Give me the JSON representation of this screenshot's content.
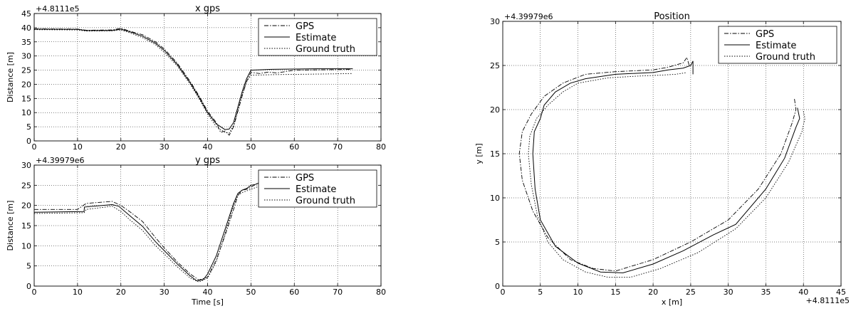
{
  "chart_data": [
    {
      "type": "line",
      "title": "x gps",
      "offset_label": "+4.8111e5",
      "xlabel": "",
      "ylabel": "Distance [m]",
      "xlim": [
        0,
        80
      ],
      "ylim": [
        0,
        45
      ],
      "xticks": [
        "0",
        "10",
        "20",
        "30",
        "40",
        "50",
        "60",
        "70",
        "80"
      ],
      "yticks": [
        "0",
        "5",
        "10",
        "15",
        "20",
        "25",
        "30",
        "35",
        "40",
        "45"
      ],
      "grid": true,
      "legend_position": "top-right",
      "legend": [
        "GPS",
        "Estimate",
        "Ground truth"
      ],
      "series": [
        {
          "name": "GPS",
          "style": "dashdot",
          "points": [
            [
              0,
              39.6
            ],
            [
              10,
              39.5
            ],
            [
              12,
              39.1
            ],
            [
              18,
              39.2
            ],
            [
              20,
              39.8
            ],
            [
              22,
              38.8
            ],
            [
              25,
              37.5
            ],
            [
              28,
              35.0
            ],
            [
              30,
              32.5
            ],
            [
              33,
              27.5
            ],
            [
              36,
              21.0
            ],
            [
              38,
              16.0
            ],
            [
              40,
              10.5
            ],
            [
              42,
              6.5
            ],
            [
              43,
              3.0
            ],
            [
              44,
              3.5
            ],
            [
              45,
              2.0
            ],
            [
              46,
              5.0
            ],
            [
              47,
              10.5
            ],
            [
              48,
              16.0
            ],
            [
              49,
              21.0
            ],
            [
              50,
              24.2
            ],
            [
              52,
              23.8
            ],
            [
              54,
              24.3
            ],
            [
              56,
              24.0
            ],
            [
              60,
              25.0
            ],
            [
              65,
              25.1
            ],
            [
              70,
              25.2
            ],
            [
              73,
              25.3
            ]
          ]
        },
        {
          "name": "Estimate",
          "style": "solid",
          "points": [
            [
              0,
              39.5
            ],
            [
              10,
              39.4
            ],
            [
              12,
              39.0
            ],
            [
              18,
              39.0
            ],
            [
              20,
              39.5
            ],
            [
              22,
              38.6
            ],
            [
              25,
              37.0
            ],
            [
              28,
              34.5
            ],
            [
              30,
              32.0
            ],
            [
              33,
              27.0
            ],
            [
              36,
              20.5
            ],
            [
              38,
              15.5
            ],
            [
              40,
              10.0
            ],
            [
              42,
              6.0
            ],
            [
              44,
              4.0
            ],
            [
              45,
              4.2
            ],
            [
              46,
              6.5
            ],
            [
              47,
              12.0
            ],
            [
              48,
              17.5
            ],
            [
              49,
              22.0
            ],
            [
              50,
              25.0
            ],
            [
              55,
              25.3
            ],
            [
              60,
              25.4
            ],
            [
              65,
              25.5
            ],
            [
              70,
              25.5
            ],
            [
              73.5,
              25.5
            ]
          ]
        },
        {
          "name": "Ground truth",
          "style": "dotted",
          "points": [
            [
              0,
              39.3
            ],
            [
              10,
              39.2
            ],
            [
              12,
              38.8
            ],
            [
              18,
              38.9
            ],
            [
              20,
              39.2
            ],
            [
              22,
              38.2
            ],
            [
              25,
              36.5
            ],
            [
              28,
              34.0
            ],
            [
              30,
              31.3
            ],
            [
              33,
              26.5
            ],
            [
              36,
              20.0
            ],
            [
              38,
              15.0
            ],
            [
              40,
              9.5
            ],
            [
              42,
              5.0
            ],
            [
              44,
              3.0
            ],
            [
              45,
              2.8
            ],
            [
              46,
              5.5
            ],
            [
              47,
              11.0
            ],
            [
              48,
              16.5
            ],
            [
              49,
              21.0
            ],
            [
              50,
              23.2
            ],
            [
              55,
              23.4
            ],
            [
              60,
              23.5
            ],
            [
              65,
              23.6
            ],
            [
              70,
              23.7
            ],
            [
              73.5,
              23.8
            ]
          ]
        }
      ]
    },
    {
      "type": "line",
      "title": "y gps",
      "offset_label": "+4.39979e6",
      "xlabel": "Time [s]",
      "ylabel": "Distance [m]",
      "xlim": [
        0,
        80
      ],
      "ylim": [
        0,
        30
      ],
      "xticks": [
        "0",
        "10",
        "20",
        "30",
        "40",
        "50",
        "60",
        "70",
        "80"
      ],
      "yticks": [
        "0",
        "5",
        "10",
        "15",
        "20",
        "25",
        "30"
      ],
      "grid": true,
      "legend_position": "top-right",
      "legend": [
        "GPS",
        "Estimate",
        "Ground truth"
      ],
      "series": [
        {
          "name": "GPS",
          "style": "dashdot",
          "points": [
            [
              0,
              19.0
            ],
            [
              10,
              19.0
            ],
            [
              12,
              20.5
            ],
            [
              18,
              21.0
            ],
            [
              20,
              20.0
            ],
            [
              22,
              18.5
            ],
            [
              25,
              16.0
            ],
            [
              28,
              12.0
            ],
            [
              30,
              9.5
            ],
            [
              33,
              6.0
            ],
            [
              36,
              3.0
            ],
            [
              38,
              1.5
            ],
            [
              40,
              2.2
            ],
            [
              42,
              6.5
            ],
            [
              44,
              12.5
            ],
            [
              46,
              19.0
            ],
            [
              47,
              22.5
            ],
            [
              48,
              23.8
            ],
            [
              49,
              24.0
            ],
            [
              50,
              24.5
            ],
            [
              51,
              25.2
            ],
            [
              52,
              25.8
            ]
          ]
        },
        {
          "name": "Estimate",
          "style": "solid",
          "points": [
            [
              0,
              18.3
            ],
            [
              11.5,
              18.5
            ],
            [
              11.6,
              19.6
            ],
            [
              18,
              20.2
            ],
            [
              19.5,
              19.8
            ],
            [
              22,
              17.5
            ],
            [
              25,
              14.8
            ],
            [
              28,
              11.0
            ],
            [
              30,
              8.8
            ],
            [
              33,
              5.5
            ],
            [
              36,
              2.5
            ],
            [
              37.5,
              1.3
            ],
            [
              39,
              1.6
            ],
            [
              40,
              3.0
            ],
            [
              42,
              7.5
            ],
            [
              44,
              14.0
            ],
            [
              46,
              20.5
            ],
            [
              47,
              23.0
            ],
            [
              48,
              23.8
            ],
            [
              49,
              24.2
            ],
            [
              50,
              25.0
            ],
            [
              51,
              25.2
            ],
            [
              52,
              25.6
            ]
          ]
        },
        {
          "name": "Ground truth",
          "style": "dotted",
          "points": [
            [
              0,
              18.0
            ],
            [
              11.5,
              18.2
            ],
            [
              12,
              19.0
            ],
            [
              18,
              19.8
            ],
            [
              20,
              18.5
            ],
            [
              22,
              16.5
            ],
            [
              25,
              13.8
            ],
            [
              28,
              10.0
            ],
            [
              30,
              8.0
            ],
            [
              33,
              4.8
            ],
            [
              36,
              2.0
            ],
            [
              38,
              1.0
            ],
            [
              40,
              2.0
            ],
            [
              42,
              6.0
            ],
            [
              44,
              13.0
            ],
            [
              46,
              20.0
            ],
            [
              47,
              22.5
            ],
            [
              48,
              23.2
            ],
            [
              50,
              24.0
            ],
            [
              52,
              24.8
            ]
          ]
        }
      ]
    },
    {
      "type": "line",
      "title": "Position",
      "offset_label": "+4.39979e6",
      "x_offset_label": "+4.8111e5",
      "xlabel": "x [m]",
      "ylabel": "y [m]",
      "xlim": [
        0,
        45
      ],
      "ylim": [
        0,
        30
      ],
      "xticks": [
        "0",
        "5",
        "10",
        "15",
        "20",
        "25",
        "30",
        "35",
        "40",
        "45"
      ],
      "yticks": [
        "0",
        "5",
        "10",
        "15",
        "20",
        "25",
        "30"
      ],
      "grid": true,
      "legend_position": "top-right",
      "legend": [
        "GPS",
        "Estimate",
        "Ground truth"
      ],
      "series": [
        {
          "name": "GPS",
          "style": "dashdot",
          "points": [
            [
              38.8,
              21.2
            ],
            [
              39.0,
              20.0
            ],
            [
              38.5,
              18.5
            ],
            [
              37.0,
              15.0
            ],
            [
              34.0,
              11.0
            ],
            [
              30.0,
              7.5
            ],
            [
              25.0,
              5.0
            ],
            [
              20.0,
              3.0
            ],
            [
              15.0,
              1.7
            ],
            [
              12.0,
              2.0
            ],
            [
              9.0,
              3.0
            ],
            [
              6.0,
              5.5
            ],
            [
              4.0,
              8.5
            ],
            [
              2.6,
              12.0
            ],
            [
              2.2,
              15.0
            ],
            [
              2.6,
              17.5
            ],
            [
              3.8,
              19.5
            ],
            [
              5.5,
              21.5
            ],
            [
              8.0,
              23.0
            ],
            [
              11.0,
              24.0
            ],
            [
              15.0,
              24.3
            ],
            [
              20.0,
              24.5
            ],
            [
              22.0,
              24.8
            ],
            [
              24.0,
              25.3
            ],
            [
              24.5,
              25.9
            ],
            [
              24.8,
              25.0
            ]
          ]
        },
        {
          "name": "Estimate",
          "style": "solid",
          "points": [
            [
              39.2,
              20.2
            ],
            [
              39.5,
              19.0
            ],
            [
              39.0,
              18.0
            ],
            [
              37.5,
              14.5
            ],
            [
              35.0,
              11.0
            ],
            [
              31.0,
              7.0
            ],
            [
              28.0,
              5.8
            ],
            [
              24.0,
              4.0
            ],
            [
              20.0,
              2.5
            ],
            [
              16.0,
              1.5
            ],
            [
              13.0,
              1.6
            ],
            [
              10.0,
              2.6
            ],
            [
              7.0,
              4.5
            ],
            [
              5.0,
              7.5
            ],
            [
              4.3,
              11.0
            ],
            [
              4.0,
              15.0
            ],
            [
              4.2,
              17.5
            ],
            [
              5.0,
              19.0
            ],
            [
              5.5,
              20.5
            ],
            [
              7.0,
              22.0
            ],
            [
              9.0,
              23.0
            ],
            [
              11.0,
              23.5
            ],
            [
              15.0,
              24.0
            ],
            [
              20.0,
              24.2
            ],
            [
              22.0,
              24.5
            ],
            [
              24.0,
              24.7
            ],
            [
              25.0,
              25.0
            ],
            [
              25.3,
              25.5
            ],
            [
              25.3,
              24.0
            ]
          ]
        },
        {
          "name": "Ground truth",
          "style": "dotted",
          "points": [
            [
              40.0,
              19.8
            ],
            [
              40.2,
              19.0
            ],
            [
              39.8,
              17.5
            ],
            [
              38.0,
              14.0
            ],
            [
              35.0,
              10.0
            ],
            [
              31.0,
              6.5
            ],
            [
              26.0,
              3.8
            ],
            [
              21.0,
              2.0
            ],
            [
              17.0,
              1.0
            ],
            [
              14.0,
              1.0
            ],
            [
              11.0,
              1.6
            ],
            [
              8.0,
              3.0
            ],
            [
              6.0,
              5.0
            ],
            [
              4.6,
              8.0
            ],
            [
              3.8,
              11.5
            ],
            [
              3.4,
              15.0
            ],
            [
              3.6,
              17.0
            ],
            [
              4.5,
              19.0
            ],
            [
              6.0,
              20.5
            ],
            [
              8.0,
              22.0
            ],
            [
              10.0,
              23.0
            ],
            [
              14.0,
              23.6
            ],
            [
              18.0,
              23.8
            ],
            [
              21.0,
              23.9
            ],
            [
              23.0,
              24.0
            ],
            [
              24.5,
              24.2
            ]
          ]
        }
      ]
    }
  ]
}
